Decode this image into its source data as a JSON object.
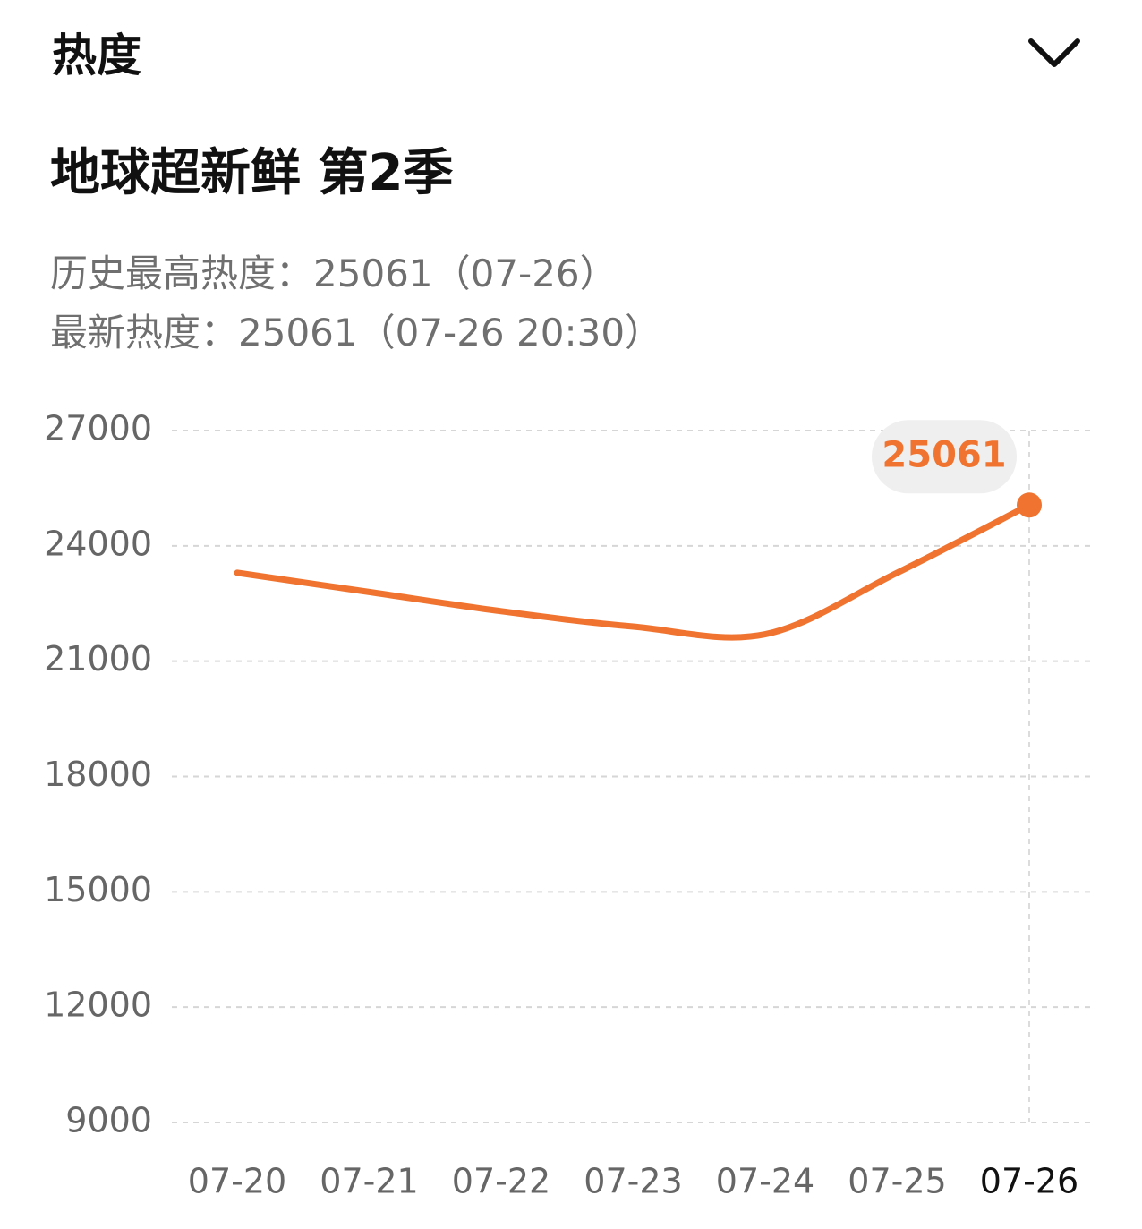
{
  "header": {
    "title": "热度"
  },
  "show": {
    "title": "地球超新鲜 第2季",
    "stats": [
      "历史最高热度：25061（07-26）",
      "最新热度：25061（07-26 20:30）"
    ]
  },
  "chart_data": {
    "type": "line",
    "categories": [
      "07-20",
      "07-21",
      "07-22",
      "07-23",
      "07-24",
      "07-25",
      "07-26"
    ],
    "values": [
      23300,
      22800,
      22300,
      21900,
      21700,
      23300,
      25061
    ],
    "color": "#f07430",
    "ylim": [
      9000,
      27000
    ],
    "yticks": [
      9000,
      12000,
      15000,
      18000,
      21000,
      24000,
      27000
    ],
    "grid": true
  }
}
